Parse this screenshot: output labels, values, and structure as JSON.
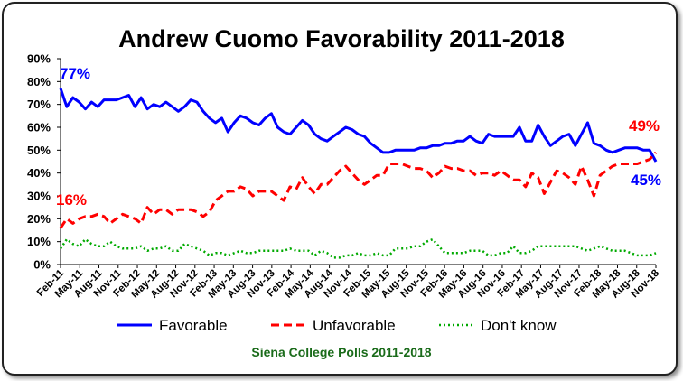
{
  "chart_data": {
    "type": "line",
    "title": "Andrew Cuomo Favorability 2011-2018",
    "source": "Siena College Polls 2011-2018",
    "ylim": [
      0,
      90
    ],
    "y_ticks": [
      "0%",
      "10%",
      "20%",
      "30%",
      "40%",
      "50%",
      "60%",
      "70%",
      "80%",
      "90%"
    ],
    "y_tick_values": [
      0,
      10,
      20,
      30,
      40,
      50,
      60,
      70,
      80,
      90
    ],
    "x_ticks": [
      "Feb-11",
      "May-11",
      "Aug-11",
      "Nov-11",
      "Feb-12",
      "May-12",
      "Aug-12",
      "Nov-12",
      "Feb-13",
      "May-13",
      "Aug-13",
      "Nov-13",
      "Feb-14",
      "May-14",
      "Aug-14",
      "Nov-14",
      "Feb-15",
      "May-15",
      "Aug-15",
      "Nov-15",
      "Feb-16",
      "May-16",
      "Aug-16",
      "Nov-16",
      "Feb-17",
      "May-17",
      "Aug-17",
      "Nov-17",
      "Feb-18",
      "May-18",
      "Aug-18",
      "Nov-18"
    ],
    "grid": false,
    "legend_position": "bottom",
    "series": [
      {
        "name": "Favorable",
        "color": "#0000ff",
        "style": "solid",
        "values": [
          77,
          69,
          73,
          71,
          68,
          71,
          69,
          72,
          72,
          72,
          73,
          74,
          69,
          73,
          68,
          70,
          69,
          71,
          69,
          67,
          69,
          72,
          71,
          67,
          64,
          62,
          64,
          58,
          62,
          65,
          64,
          62,
          61,
          64,
          66,
          60,
          58,
          57,
          60,
          63,
          61,
          57,
          55,
          54,
          56,
          58,
          60,
          59,
          57,
          56,
          53,
          51,
          49,
          49,
          50,
          50,
          50,
          50,
          51,
          51,
          52,
          52,
          53,
          53,
          54,
          54,
          56,
          54,
          53,
          57,
          56,
          56,
          56,
          56,
          60,
          54,
          54,
          61,
          56,
          52,
          54,
          56,
          57,
          52,
          57,
          62,
          53,
          52,
          50,
          49,
          50,
          51,
          51,
          51,
          50,
          50,
          45
        ]
      },
      {
        "name": "Unfavorable",
        "color": "#ff0000",
        "style": "dashed",
        "values": [
          16,
          20,
          18,
          20,
          21,
          21,
          22,
          21,
          18,
          20,
          22,
          21,
          20,
          18,
          25,
          22,
          24,
          24,
          22,
          24,
          24,
          24,
          23,
          21,
          23,
          28,
          30,
          32,
          32,
          34,
          33,
          30,
          32,
          32,
          32,
          30,
          28,
          34,
          33,
          38,
          34,
          31,
          35,
          35,
          38,
          41,
          43,
          40,
          37,
          35,
          37,
          39,
          39,
          44,
          44,
          44,
          43,
          42,
          42,
          41,
          38,
          40,
          43,
          42,
          42,
          41,
          41,
          39,
          40,
          40,
          39,
          41,
          39,
          37,
          37,
          34,
          40,
          38,
          31,
          36,
          41,
          40,
          38,
          35,
          43,
          37,
          30,
          39,
          41,
          43,
          44,
          44,
          44,
          44,
          45,
          46,
          49
        ]
      },
      {
        "name": "Don't know",
        "color": "#00aa00",
        "style": "dotted",
        "values": [
          7,
          11,
          9,
          8,
          11,
          9,
          8,
          8,
          10,
          8,
          7,
          7,
          7,
          8,
          6,
          7,
          7,
          8,
          6,
          6,
          9,
          8,
          7,
          6,
          4,
          5,
          5,
          4,
          5,
          6,
          5,
          5,
          6,
          6,
          6,
          6,
          6,
          7,
          6,
          6,
          6,
          4,
          6,
          5,
          3,
          3,
          4,
          4,
          5,
          4,
          4,
          5,
          4,
          4,
          7,
          7,
          7,
          8,
          8,
          10,
          11,
          8,
          5,
          5,
          5,
          5,
          6,
          6,
          6,
          4,
          4,
          5,
          5,
          8,
          5,
          5,
          6,
          8,
          8,
          8,
          8,
          8,
          8,
          8,
          7,
          6,
          7,
          8,
          7,
          6,
          6,
          6,
          5,
          4,
          4,
          4,
          5
        ]
      }
    ],
    "annotations": [
      {
        "text": "77%",
        "series": "Favorable"
      },
      {
        "text": "16%",
        "series": "Unfavorable"
      },
      {
        "text": "49%",
        "series": "Unfavorable"
      },
      {
        "text": "45%",
        "series": "Favorable"
      }
    ]
  }
}
